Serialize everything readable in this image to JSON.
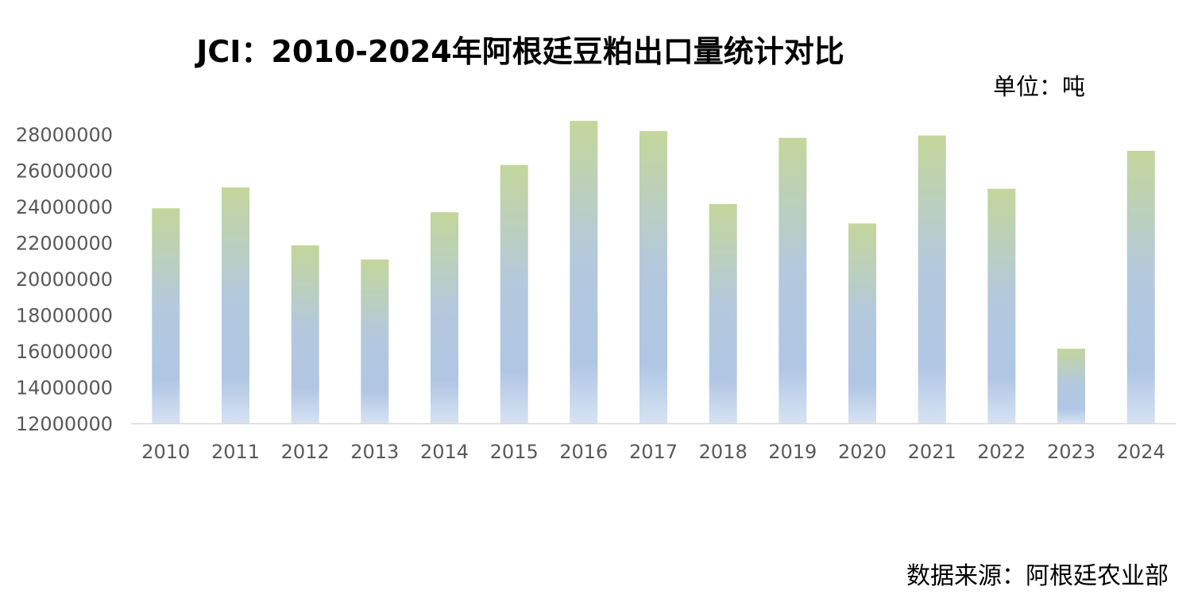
{
  "chart_data": {
    "type": "bar",
    "title": "JCI：2010-2024年阿根廷豆粕出口量统计对比",
    "unit": "单位：吨",
    "source": "数据来源：阿根廷农业部",
    "categories": [
      "2010",
      "2011",
      "2012",
      "2013",
      "2014",
      "2015",
      "2016",
      "2017",
      "2018",
      "2019",
      "2020",
      "2021",
      "2022",
      "2023",
      "2024"
    ],
    "values": [
      23900000,
      25050000,
      21850000,
      21070000,
      23680000,
      26300000,
      28740000,
      28170000,
      24130000,
      27800000,
      23060000,
      27930000,
      24980000,
      16130000,
      27080000
    ],
    "ylim": [
      12000000,
      28000000
    ],
    "yticks": [
      "12000000",
      "14000000",
      "16000000",
      "18000000",
      "20000000",
      "22000000",
      "24000000",
      "26000000",
      "28000000"
    ],
    "grid": false,
    "legend": "none",
    "colors": {
      "bar_top": "#c3d69b",
      "bar_mid": "#b4c9dc",
      "bar_low": "#b0c6e4",
      "bar_bottom": "#d6e2f2",
      "axis": "#d9d9d9",
      "tick_text": "#595959"
    }
  }
}
